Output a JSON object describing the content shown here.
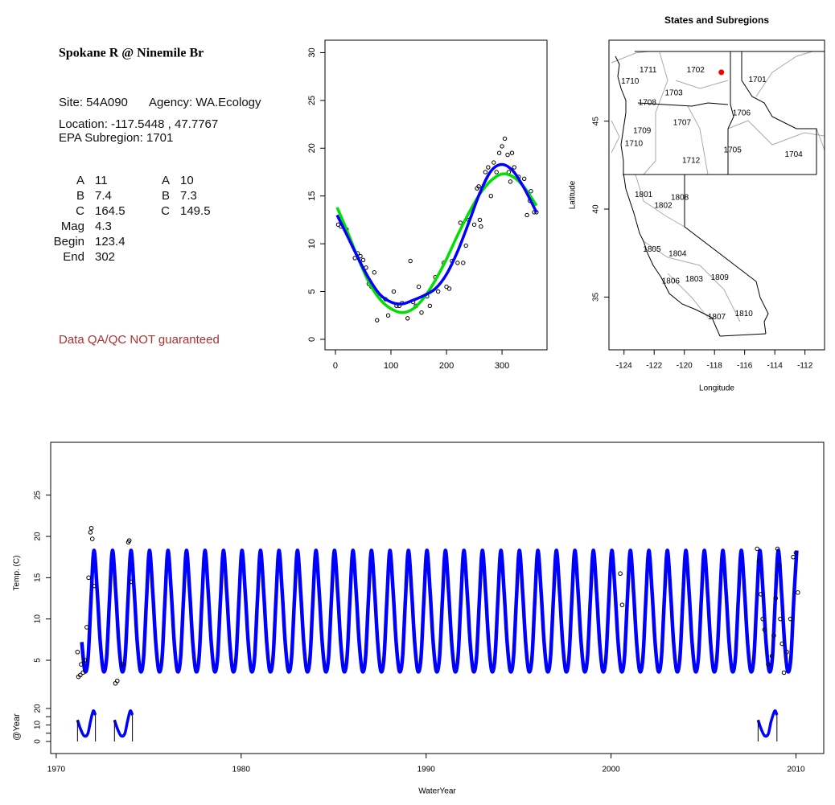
{
  "info": {
    "title": "Spokane R @ Ninemile Br",
    "site": "Site: 54A090",
    "agency": "Agency: WA.Ecology",
    "location": "Location: -117.5448 , 47.7767",
    "subregion": "EPA Subregion: 1701",
    "params": [
      [
        "A",
        "11",
        "A",
        "10"
      ],
      [
        "B",
        "7.4",
        "B",
        "7.3"
      ],
      [
        "C",
        "164.5",
        "C",
        "149.5"
      ],
      [
        "Mag",
        "4.3"
      ],
      [
        "Begin",
        "123.4"
      ],
      [
        "End",
        "302"
      ]
    ],
    "note": "Data QA/QC NOT guaranteed"
  },
  "chart_data": [
    {
      "type": "scatter",
      "xlim": [
        -18.8,
        381
      ],
      "ylim": [
        -1.1,
        31.3
      ],
      "xticks": [
        0,
        100,
        200,
        300
      ],
      "yticks": [
        0,
        5,
        10,
        15,
        20,
        25,
        30
      ],
      "points": {
        "x": [
          5,
          10,
          20,
          35,
          40,
          45,
          50,
          55,
          60,
          65,
          70,
          75,
          80,
          90,
          95,
          105,
          110,
          115,
          120,
          130,
          135,
          140,
          145,
          150,
          155,
          165,
          170,
          180,
          185,
          195,
          200,
          205,
          210,
          220,
          225,
          230,
          235,
          240,
          250,
          255,
          258,
          260,
          262,
          270,
          275,
          280,
          285,
          290,
          295,
          300,
          305,
          310,
          312,
          315,
          318,
          322,
          330,
          340,
          345,
          350,
          352,
          358,
          362
        ],
        "values": [
          12,
          11.8,
          11.5,
          8.5,
          9,
          8.7,
          8.3,
          7.5,
          5.8,
          5.5,
          7,
          2,
          4.5,
          4.2,
          2.5,
          5,
          3.5,
          3.5,
          3.8,
          2.2,
          8.2,
          3.9,
          3.5,
          5.5,
          2.8,
          4.5,
          3.5,
          6.5,
          5,
          8,
          5.5,
          5.3,
          8.2,
          8,
          12.2,
          8,
          9.8,
          12.5,
          12,
          15.8,
          16,
          12.5,
          11.8,
          17.5,
          18,
          15,
          18.5,
          17.5,
          19.5,
          20.2,
          21,
          19.3,
          17.5,
          16.5,
          19.5,
          18,
          17,
          16.8,
          13,
          14.5,
          15.5,
          13.3,
          13.3
        ]
      },
      "lines": [
        {
          "color": "#00e000",
          "x": [
            3,
            20,
            40,
            60,
            80,
            100,
            120,
            140,
            160,
            180,
            200,
            220,
            240,
            260,
            280,
            300,
            320,
            340,
            362
          ],
          "values": [
            13.8,
            11.5,
            8.6,
            6.0,
            4.2,
            3.2,
            2.8,
            3.2,
            4.4,
            6.2,
            8.4,
            10.9,
            13.2,
            15.2,
            16.6,
            17.3,
            17.0,
            15.9,
            14.0
          ]
        },
        {
          "color": "#0000ff",
          "x": [
            3,
            20,
            40,
            60,
            80,
            100,
            120,
            140,
            160,
            180,
            200,
            220,
            240,
            260,
            280,
            300,
            320,
            340,
            362
          ],
          "values": [
            13,
            11,
            8.6,
            6.4,
            4.7,
            3.9,
            3.7,
            4.1,
            4.6,
            5.3,
            6.8,
            9.2,
            12.2,
            15.3,
            17.6,
            18.3,
            17.6,
            15.8,
            13.3
          ]
        }
      ]
    },
    {
      "type": "map",
      "title": "States and Subregions",
      "xlabel": "Longitude",
      "ylabel": "Latitude",
      "xlim": [
        -125.0,
        -110.7
      ],
      "ylim": [
        32.0,
        49.6
      ],
      "xticks": [
        -124,
        -122,
        -120,
        -118,
        -116,
        -114,
        -112
      ],
      "yticks": [
        35,
        40,
        45
      ],
      "labels": {
        "text": [
          "1702",
          "1711",
          "1710",
          "1703",
          "1708",
          "1701",
          "1706",
          "1707",
          "1709",
          "1710",
          "1705",
          "1704",
          "1712",
          "1801",
          "1808",
          "1802",
          "1805",
          "1804",
          "1809",
          "1806",
          "1803",
          "1810",
          "1807"
        ],
        "x": [
          -119.25,
          -122.4,
          -123.6,
          -120.7,
          -122.45,
          -115.15,
          -116.2,
          -120.15,
          -122.8,
          -123.35,
          -116.8,
          -112.75,
          -119.55,
          -122.7,
          -120.3,
          -121.4,
          -122.15,
          -120.45,
          -117.65,
          -120.9,
          -119.35,
          -116.05,
          -117.85
        ],
        "values": [
          47.9,
          47.9,
          47.25,
          46.6,
          46.05,
          47.35,
          45.45,
          44.9,
          44.45,
          43.7,
          43.35,
          43.1,
          42.75,
          40.8,
          40.65,
          40.2,
          37.7,
          37.45,
          36.1,
          35.9,
          36.0,
          34.05,
          33.85
        ]
      },
      "site": {
        "x": -117.5448,
        "y": 47.7767,
        "color": "#ff0000"
      }
    },
    {
      "type": "timeseries",
      "xlabel": "WaterYear",
      "ylabel": "Temp. (C)",
      "y2label": "@Year",
      "xlim": [
        1969.7,
        2011.5
      ],
      "ylim": [
        -6.3,
        31.4
      ],
      "y2lim": [
        -7.3,
        22.9
      ],
      "xticks": [
        1970,
        1980,
        1990,
        2000,
        2010
      ],
      "yticks": [
        5,
        10,
        15,
        20,
        25
      ],
      "y2ticks": [
        0,
        5,
        10,
        15,
        20
      ],
      "series": [
        {
          "color": "#0000ff",
          "x": [
            1971.38,
            1971.55,
            1971.72,
            1971.88,
            1972.04,
            1972.22,
            1972.38,
            1972.55,
            1972.72,
            1972.88,
            1973.04,
            1973.22,
            1973.38,
            1973.55,
            1973.72,
            1973.88,
            1974.04,
            1974.22,
            1974.38,
            1974.55,
            1974.72,
            1974.88,
            1975.04,
            1975.22,
            1975.38,
            1975.55,
            1975.72,
            1975.88,
            1976.04,
            1976.22,
            1976.38,
            1976.55,
            1976.72,
            1976.88,
            1977.04,
            1977.22,
            1977.38,
            1977.55,
            1977.72,
            1977.88,
            1978.04,
            1978.22,
            1978.38,
            1978.55,
            1978.72,
            1978.88,
            1979.04,
            1979.22,
            1979.38,
            1979.55,
            1979.72,
            1979.88,
            1980.04,
            1980.22,
            1980.38,
            1980.55,
            1980.72,
            1980.88,
            1981.04,
            1981.22,
            1981.38,
            1981.55,
            1981.72,
            1981.88,
            1982.04,
            1982.22,
            1982.38,
            1982.55,
            1982.72,
            1982.88,
            1983.04,
            1983.22,
            1983.38,
            1983.55,
            1983.72,
            1983.88,
            1984.04,
            1984.22,
            1984.38,
            1984.55,
            1984.72,
            1984.88,
            1985.04,
            1985.22,
            1985.38,
            1985.55,
            1985.72,
            1985.88,
            1986.04,
            1986.22,
            1986.38,
            1986.55,
            1986.72,
            1986.88,
            1987.04,
            1987.22,
            1987.38,
            1987.55,
            1987.72,
            1987.88,
            1988.04,
            1988.22,
            1988.38,
            1988.55,
            1988.72,
            1988.88,
            1989.04,
            1989.22,
            1989.38,
            1989.55,
            1989.72,
            1989.88,
            1990.04,
            1990.22,
            1990.38,
            1990.55,
            1990.72,
            1990.88,
            1991.04,
            1991.22,
            1991.38,
            1991.55,
            1991.72,
            1991.88,
            1992.04,
            1992.22,
            1992.38,
            1992.55,
            1992.72,
            1992.88,
            1993.04,
            1993.22,
            1993.38,
            1993.55,
            1993.72,
            1993.88,
            1994.04,
            1994.22,
            1994.38,
            1994.55,
            1994.72,
            1994.88,
            1995.04,
            1995.22,
            1995.38,
            1995.55,
            1995.72,
            1995.88,
            1996.04,
            1996.22,
            1996.38,
            1996.55,
            1996.72,
            1996.88,
            1997.04,
            1997.22,
            1997.38,
            1997.55,
            1997.72,
            1997.88,
            1998.04,
            1998.22,
            1998.38,
            1998.55,
            1998.72,
            1998.88,
            1999.04,
            1999.22,
            1999.38,
            1999.55,
            1999.72,
            1999.88,
            2000.04,
            2000.22,
            2000.38,
            2000.55,
            2000.72,
            2000.88,
            2001.04,
            2001.22,
            2001.38,
            2001.55,
            2001.72,
            2001.88,
            2002.04,
            2002.22,
            2002.38,
            2002.55,
            2002.72,
            2002.88,
            2003.04,
            2003.22,
            2003.38,
            2003.55,
            2003.72,
            2003.88,
            2004.04,
            2004.22,
            2004.38,
            2004.55,
            2004.72,
            2004.88,
            2005.04,
            2005.22,
            2005.38,
            2005.55,
            2005.72,
            2005.88,
            2006.04,
            2006.22,
            2006.38,
            2006.55,
            2006.72,
            2006.88,
            2007.04,
            2007.22,
            2007.38,
            2007.55,
            2007.72,
            2007.88,
            2008.04,
            2008.22,
            2008.38,
            2008.55,
            2008.72,
            2008.88,
            2009.04,
            2009.22,
            2009.38,
            2009.55,
            2009.72,
            2009.88,
            2010.04
          ],
          "values": [
            7.2,
            3.7,
            5.2,
            12.3,
            18.3,
            13.2,
            7.2,
            3.7,
            5.2,
            12.3,
            18.3,
            13.2,
            7.2,
            3.7,
            5.2,
            12.3,
            18.3,
            13.2,
            7.2,
            3.7,
            5.2,
            12.3,
            18.3,
            13.2,
            7.2,
            3.7,
            5.2,
            12.3,
            18.3,
            13.2,
            7.2,
            3.7,
            5.2,
            12.3,
            18.3,
            13.2,
            7.2,
            3.7,
            5.2,
            12.3,
            18.3,
            13.2,
            7.2,
            3.7,
            5.2,
            12.3,
            18.3,
            13.2,
            7.2,
            3.7,
            5.2,
            12.3,
            18.3,
            13.2,
            7.2,
            3.7,
            5.2,
            12.3,
            18.3,
            13.2,
            7.2,
            3.7,
            5.2,
            12.3,
            18.3,
            13.2,
            7.2,
            3.7,
            5.2,
            12.3,
            18.3,
            13.2,
            7.2,
            3.7,
            5.2,
            12.3,
            18.3,
            13.2,
            7.2,
            3.7,
            5.2,
            12.3,
            18.3,
            13.2,
            7.2,
            3.7,
            5.2,
            12.3,
            18.3,
            13.2,
            7.2,
            3.7,
            5.2,
            12.3,
            18.3,
            13.2,
            7.2,
            3.7,
            5.2,
            12.3,
            18.3,
            13.2,
            7.2,
            3.7,
            5.2,
            12.3,
            18.3,
            13.2,
            7.2,
            3.7,
            5.2,
            12.3,
            18.3,
            13.2,
            7.2,
            3.7,
            5.2,
            12.3,
            18.3,
            13.2,
            7.2,
            3.7,
            5.2,
            12.3,
            18.3,
            13.2,
            7.2,
            3.7,
            5.2,
            12.3,
            18.3,
            13.2,
            7.2,
            3.7,
            5.2,
            12.3,
            18.3,
            13.2,
            7.2,
            3.7,
            5.2,
            12.3,
            18.3,
            13.2,
            7.2,
            3.7,
            5.2,
            12.3,
            18.3,
            13.2,
            7.2,
            3.7,
            5.2,
            12.3,
            18.3,
            13.2,
            7.2,
            3.7,
            5.2,
            12.3,
            18.3,
            13.2,
            7.2,
            3.7,
            5.2,
            12.3,
            18.3,
            13.2,
            7.2,
            3.7,
            5.2,
            12.3,
            18.3,
            13.2,
            7.2,
            3.7,
            5.2,
            12.3,
            18.3,
            13.2,
            7.2,
            3.7,
            5.2,
            12.3,
            18.3,
            13.2,
            7.2,
            3.7,
            5.2,
            12.3,
            18.3,
            13.2,
            7.2,
            3.7,
            5.2,
            12.3,
            18.3,
            13.2,
            7.2,
            3.7,
            5.2,
            12.3,
            18.3,
            13.2,
            7.2,
            3.7,
            5.2,
            12.3,
            18.3,
            13.2,
            7.2,
            3.7,
            5.2,
            12.3,
            18.3,
            13.2,
            7.2,
            3.7,
            5.2,
            12.3,
            18.3,
            13.2,
            7.2,
            3.7,
            5.2,
            12.3,
            18.3,
            13.2,
            7.2,
            3.7,
            5.2,
            12.3,
            18.3
          ]
        }
      ],
      "points": {
        "x": [
          1971.15,
          1971.2,
          1971.3,
          1971.35,
          1971.45,
          1971.55,
          1971.65,
          1971.75,
          1971.85,
          1971.9,
          1971.95,
          1972.05,
          1973.2,
          1973.3,
          1973.6,
          1973.9,
          1973.95,
          1974.05,
          2000.5,
          2000.6,
          2007.9,
          2008,
          2008.1,
          2008.2,
          2008.3,
          2008.5,
          2008.7,
          2008.8,
          2008.9,
          2009,
          2009.1,
          2009.15,
          2009.25,
          2009.35,
          2009.5,
          2009.7,
          2009.85,
          2010,
          2010.1
        ],
        "values": [
          6,
          3,
          3.2,
          4.5,
          3.5,
          5,
          9,
          15,
          20.5,
          21,
          19.7,
          14,
          2.2,
          2.5,
          4.5,
          19.3,
          19.5,
          14.5,
          15.5,
          11.7,
          18.5,
          17,
          13,
          10,
          8.7,
          4.5,
          5.5,
          8,
          12.5,
          18.5,
          16.5,
          10,
          7,
          3.5,
          6,
          10,
          17.5,
          18,
          13.2
        ]
      },
      "y2series": [
        {
          "axis": "y2",
          "color": "#0000ff",
          "x": [
            1971.15,
            1971.3,
            1971.5,
            1971.7,
            1971.85,
            1972.0,
            1972.12
          ],
          "values": [
            13,
            8,
            3.5,
            4.5,
            12,
            18.5,
            16
          ]
        },
        {
          "axis": "y2",
          "color": "#0000ff",
          "x": [
            1973.15,
            1973.3,
            1973.5,
            1973.7,
            1973.85,
            1974.0,
            1974.12
          ],
          "values": [
            13,
            8,
            3.5,
            4.5,
            12,
            18.5,
            16
          ]
        },
        {
          "axis": "y2",
          "color": "#0000ff",
          "x": [
            2007.95,
            2008.1,
            2008.3,
            2008.5,
            2008.65,
            2008.85,
            2008.97
          ],
          "values": [
            13,
            8,
            3.5,
            4.5,
            12,
            18.5,
            16
          ]
        }
      ]
    }
  ]
}
